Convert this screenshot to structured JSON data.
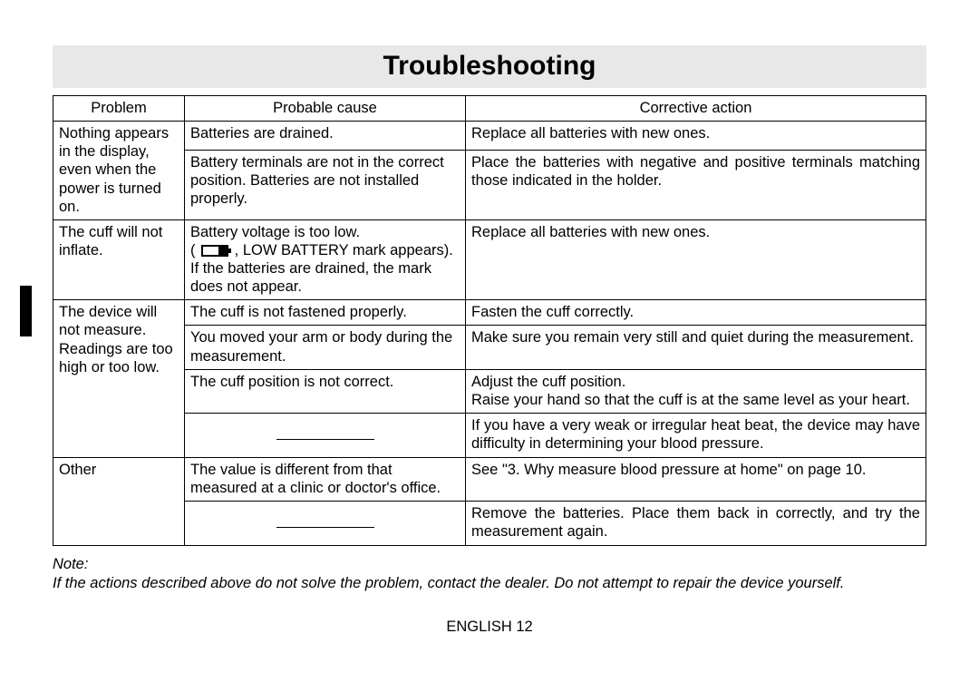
{
  "title": "Troubleshooting",
  "columns": [
    "Problem",
    "Probable cause",
    "Corrective action"
  ],
  "rows": [
    {
      "problem": "Nothing appears in the display, even when the power is turned on.",
      "causes": [
        {
          "cause": "Batteries are drained.",
          "action": "Replace all batteries with new ones."
        },
        {
          "cause": "Battery terminals are not in the correct position. Batteries are not installed properly.",
          "action": "Place the batteries with negative and positive terminals matching those indicated in the holder.",
          "action_justify": true
        }
      ]
    },
    {
      "problem": "The cuff will not inflate.",
      "causes": [
        {
          "cause_pre": "Battery voltage is too low.\n( ",
          "cause_icon": "battery",
          "cause_post": " , LOW BATTERY mark appears). If the batteries are drained, the mark does not appear.",
          "action": "Replace all batteries with new ones."
        }
      ]
    },
    {
      "problem": "The device will not measure. Readings are too high or too low.",
      "causes": [
        {
          "cause": "The cuff is not fastened properly.",
          "action": "Fasten the cuff correctly."
        },
        {
          "cause": "You moved your arm or body during the measurement.",
          "action": "Make sure you remain very still and quiet during the measurement.",
          "action_justify": true
        },
        {
          "cause": "The cuff position is not correct.",
          "action": "Adjust the cuff position.\nRaise your hand so that the cuff is at the same level as your heart.",
          "action_justify": true
        },
        {
          "cause_dash": true,
          "action": "If you have a very weak or irregular heat beat, the device may have difficulty in determining your blood pressure.",
          "action_justify": true
        }
      ]
    },
    {
      "problem": "Other",
      "causes": [
        {
          "cause": "The value is different from that measured at a clinic or doctor's office.",
          "action": "See \"3. Why measure blood pressure at home\" on page 10.",
          "action_justify": true
        },
        {
          "cause_dash": true,
          "action": "Remove the batteries. Place them back in correctly, and try the measurement again.",
          "action_justify": true
        }
      ]
    }
  ],
  "note_label": "Note:",
  "note_text": "If the actions described above do not solve the problem, contact the dealer.  Do not attempt to repair the device yourself.",
  "footer": "ENGLISH 12"
}
